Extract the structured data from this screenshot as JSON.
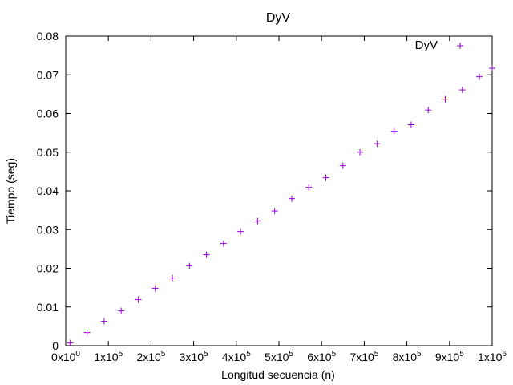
{
  "chart_data": {
    "type": "scatter",
    "title": "DyV",
    "xlabel": "Longitud secuencia (n)",
    "ylabel": "Tiempo (seg)",
    "xlim": [
      0,
      1000000
    ],
    "ylim": [
      0,
      0.08
    ],
    "grid": false,
    "legend_position": "top-right",
    "x_ticks": [
      {
        "value": 0,
        "mantissa": "0x10",
        "exp": "0"
      },
      {
        "value": 100000,
        "mantissa": "1x10",
        "exp": "5"
      },
      {
        "value": 200000,
        "mantissa": "2x10",
        "exp": "5"
      },
      {
        "value": 300000,
        "mantissa": "3x10",
        "exp": "5"
      },
      {
        "value": 400000,
        "mantissa": "4x10",
        "exp": "5"
      },
      {
        "value": 500000,
        "mantissa": "5x10",
        "exp": "5"
      },
      {
        "value": 600000,
        "mantissa": "6x10",
        "exp": "5"
      },
      {
        "value": 700000,
        "mantissa": "7x10",
        "exp": "5"
      },
      {
        "value": 800000,
        "mantissa": "8x10",
        "exp": "5"
      },
      {
        "value": 900000,
        "mantissa": "9x10",
        "exp": "5"
      },
      {
        "value": 1000000,
        "mantissa": "1x10",
        "exp": "6"
      }
    ],
    "y_ticks": [
      {
        "value": 0,
        "label": "0"
      },
      {
        "value": 0.01,
        "label": "0.01"
      },
      {
        "value": 0.02,
        "label": "0.02"
      },
      {
        "value": 0.03,
        "label": "0.03"
      },
      {
        "value": 0.04,
        "label": "0.04"
      },
      {
        "value": 0.05,
        "label": "0.05"
      },
      {
        "value": 0.06,
        "label": "0.06"
      },
      {
        "value": 0.07,
        "label": "0.07"
      },
      {
        "value": 0.08,
        "label": "0.08"
      }
    ],
    "series": [
      {
        "name": "DyV",
        "color": "#9400d3",
        "marker": "plus",
        "points": [
          [
            10000,
            0.0007
          ],
          [
            50000,
            0.0034
          ],
          [
            90000,
            0.0063
          ],
          [
            130000,
            0.009
          ],
          [
            170000,
            0.0119
          ],
          [
            210000,
            0.0148
          ],
          [
            250000,
            0.0175
          ],
          [
            290000,
            0.0206
          ],
          [
            330000,
            0.0235
          ],
          [
            370000,
            0.0264
          ],
          [
            410000,
            0.0295
          ],
          [
            450000,
            0.0322
          ],
          [
            490000,
            0.0348
          ],
          [
            530000,
            0.038
          ],
          [
            570000,
            0.0409
          ],
          [
            610000,
            0.0434
          ],
          [
            650000,
            0.0465
          ],
          [
            690000,
            0.05
          ],
          [
            730000,
            0.0522
          ],
          [
            770000,
            0.0554
          ],
          [
            810000,
            0.0571
          ],
          [
            850000,
            0.0609
          ],
          [
            890000,
            0.0637
          ],
          [
            930000,
            0.0661
          ],
          [
            970000,
            0.0695
          ],
          [
            1000000,
            0.0717
          ]
        ]
      }
    ]
  }
}
